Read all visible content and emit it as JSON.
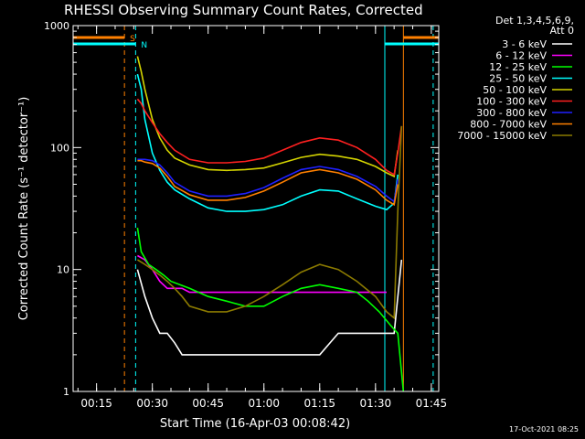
{
  "chart_data": {
    "type": "line",
    "title": "RHESSI Observing Summary Count Rates, Corrected",
    "ylabel": "Corrected Count Rate (s⁻¹ detector⁻¹)",
    "xlabel": "Start Time (16-Apr-03 00:08:42)",
    "yscale": "log",
    "ylim": [
      1,
      1000
    ],
    "xlim_minutes": [
      8.7,
      107
    ],
    "xtick_labels": [
      "00:15",
      "00:30",
      "00:45",
      "01:00",
      "01:15",
      "01:30",
      "01:45"
    ],
    "xtick_minutes": [
      15,
      30,
      45,
      60,
      75,
      90,
      105
    ],
    "ytick_labels": [
      "1",
      "10",
      "100",
      "1000"
    ],
    "ytick_values": [
      1,
      10,
      100,
      1000
    ],
    "legend_header": [
      "Det 1,3,4,5,6,9,",
      "Att 0"
    ],
    "legend_position": "right",
    "series": [
      {
        "name": "3 - 6 keV",
        "color": "#ffffff",
        "x": [
          26,
          28,
          30,
          32,
          34,
          36,
          38,
          40,
          45,
          50,
          55,
          60,
          65,
          70,
          75,
          80,
          85,
          90,
          93,
          95,
          97
        ],
        "y": [
          10,
          6,
          4,
          3,
          3,
          2.5,
          2,
          2,
          2,
          2,
          2,
          2,
          2,
          2,
          2,
          3,
          3,
          3,
          3,
          3,
          12
        ]
      },
      {
        "name": "6 - 12 keV",
        "color": "#ff00ff",
        "x": [
          26,
          28,
          30,
          32,
          34,
          36,
          38,
          40,
          45,
          50,
          55,
          60,
          65,
          70,
          75,
          80,
          85,
          90,
          93
        ],
        "y": [
          13,
          12,
          10,
          8,
          7,
          7,
          7,
          6.5,
          6.5,
          6.5,
          6.5,
          6.5,
          6.5,
          6.5,
          6.5,
          6.5,
          6.5,
          6.5,
          6.5
        ]
      },
      {
        "name": "12 - 25 keV",
        "color": "#00ff00",
        "x": [
          26,
          27,
          29,
          31,
          33,
          35,
          40,
          45,
          50,
          55,
          60,
          65,
          70,
          75,
          80,
          85,
          88,
          91,
          94,
          96,
          97.5
        ],
        "y": [
          22,
          14,
          11,
          10,
          9,
          8,
          7,
          6,
          5.5,
          5,
          5,
          6,
          7,
          7.5,
          7,
          6.5,
          5.5,
          4.5,
          3.5,
          3,
          1
        ]
      },
      {
        "name": "25 - 50 keV",
        "color": "#00ffff",
        "x": [
          26,
          27,
          28,
          30,
          32,
          34,
          36,
          40,
          45,
          50,
          55,
          60,
          65,
          70,
          75,
          80,
          85,
          90,
          93,
          95,
          96
        ],
        "y": [
          400,
          300,
          170,
          90,
          65,
          52,
          45,
          38,
          32,
          30,
          30,
          31,
          34,
          40,
          45,
          44,
          38,
          33,
          31,
          35,
          60
        ]
      },
      {
        "name": "50 - 100 keV",
        "color": "#d4d400",
        "x": [
          26,
          27,
          28,
          30,
          32,
          34,
          36,
          40,
          45,
          50,
          55,
          60,
          65,
          70,
          75,
          80,
          85,
          90,
          93,
          95,
          96
        ],
        "y": [
          560,
          420,
          300,
          170,
          120,
          95,
          82,
          72,
          66,
          65,
          66,
          68,
          75,
          83,
          88,
          85,
          80,
          70,
          62,
          58,
          95
        ]
      },
      {
        "name": "100 - 300 keV",
        "color": "#ff2020",
        "x": [
          26,
          27,
          28,
          30,
          32,
          34,
          36,
          40,
          45,
          50,
          55,
          60,
          65,
          70,
          75,
          80,
          85,
          90,
          93,
          95,
          96,
          97
        ],
        "y": [
          250,
          230,
          200,
          160,
          130,
          110,
          95,
          80,
          75,
          75,
          77,
          82,
          95,
          110,
          120,
          115,
          100,
          80,
          65,
          60,
          90,
          150
        ]
      },
      {
        "name": "300 - 800 keV",
        "color": "#2020ff",
        "x": [
          26,
          27,
          28,
          30,
          32,
          34,
          36,
          40,
          45,
          50,
          55,
          60,
          65,
          70,
          75,
          80,
          85,
          90,
          93,
          95,
          96
        ],
        "y": [
          80,
          80,
          80,
          78,
          72,
          62,
          52,
          44,
          40,
          40,
          42,
          47,
          56,
          66,
          70,
          66,
          58,
          48,
          40,
          36,
          55
        ]
      },
      {
        "name": "800 - 7000 keV",
        "color": "#ff8000",
        "x": [
          26,
          27,
          28,
          30,
          32,
          34,
          36,
          40,
          45,
          50,
          55,
          60,
          65,
          70,
          75,
          80,
          85,
          90,
          93,
          95,
          96
        ],
        "y": [
          78,
          78,
          76,
          74,
          68,
          58,
          48,
          41,
          37,
          37,
          39,
          44,
          52,
          62,
          66,
          62,
          55,
          45,
          37,
          34,
          50
        ]
      },
      {
        "name": "7000 - 15000 keV",
        "color": "#8b7a00",
        "x": [
          26,
          28,
          30,
          32,
          34,
          36,
          38,
          40,
          45,
          50,
          55,
          60,
          65,
          70,
          75,
          80,
          85,
          90,
          93,
          95,
          96,
          97
        ],
        "y": [
          12,
          11,
          10,
          9,
          8,
          7,
          6,
          5,
          4.5,
          4.5,
          5,
          6,
          7.5,
          9.5,
          11,
          10,
          8,
          6,
          4.5,
          4,
          30,
          150
        ]
      }
    ],
    "flag_bars": [
      {
        "label": "S",
        "color": "#ff8000",
        "segments": [
          [
            8.7,
            22.5
          ],
          [
            97.5,
            107
          ]
        ]
      },
      {
        "label": "N",
        "color": "#00ffff",
        "segments": [
          [
            8.7,
            25.5
          ],
          [
            92.5,
            107
          ]
        ]
      }
    ],
    "vertical_markers": [
      {
        "x": 22.5,
        "color": "#ff8000",
        "style": "dashed"
      },
      {
        "x": 25.5,
        "color": "#00ffff",
        "style": "dashed"
      },
      {
        "x": 92.5,
        "color": "#00ffff",
        "style": "solid"
      },
      {
        "x": 97.5,
        "color": "#ff8000",
        "style": "solid"
      },
      {
        "x": 105.5,
        "color": "#00ffff",
        "style": "dashed"
      }
    ]
  },
  "timestamp": "17-Oct-2021 08:25"
}
